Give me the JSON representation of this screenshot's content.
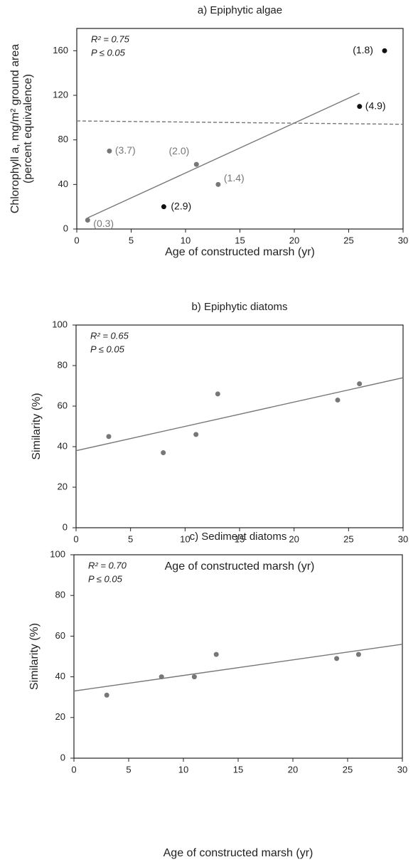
{
  "chart_data": [
    {
      "type": "scatter",
      "title": "a) Epiphytic algae",
      "xlabel": "Age of constructed marsh (yr)",
      "ylabel": "Chlorophyll a, mg/m² ground area",
      "ylabel2": "(percent equivalence)",
      "annotations": [
        "R² = 0.75",
        "P ≤ 0.05"
      ],
      "xlim": [
        0,
        30
      ],
      "ylim": [
        0,
        180
      ],
      "xticks": [
        0,
        5,
        10,
        15,
        20,
        25,
        30
      ],
      "yticks": [
        0,
        40,
        80,
        120,
        160
      ],
      "series": [
        {
          "x": [
            1,
            3,
            8,
            11,
            13,
            26,
            28.3
          ],
          "values": [
            8,
            70,
            20,
            58,
            40,
            110,
            160
          ],
          "colors": [
            "#777777",
            "#777777",
            "#111111",
            "#777777",
            "#777777",
            "#111111",
            "#111111"
          ],
          "labels": [
            "(0.3)",
            "(3.7)",
            "(2.9)",
            "(2.0)",
            "(1.4)",
            "(4.9)",
            "(1.8)"
          ]
        }
      ],
      "fit": {
        "x": [
          1,
          26
        ],
        "values": [
          10,
          122
        ],
        "color": "#777777"
      },
      "reference": {
        "x": [
          0,
          30
        ],
        "values": [
          97,
          94
        ],
        "color": "#777777"
      }
    },
    {
      "type": "scatter",
      "title": "b) Epiphytic diatoms",
      "xlabel": "Age of constructed marsh (yr)",
      "ylabel": "Similarity (%)",
      "annotations": [
        "R² = 0.65",
        "P ≤ 0.05"
      ],
      "xlim": [
        0,
        30
      ],
      "ylim": [
        0,
        100
      ],
      "xticks": [
        0,
        5,
        10,
        15,
        20,
        25,
        30
      ],
      "yticks": [
        0,
        20,
        40,
        60,
        80,
        100
      ],
      "series": [
        {
          "x": [
            3,
            8,
            11,
            13,
            24,
            26
          ],
          "values": [
            45,
            37,
            46,
            66,
            63,
            71
          ],
          "color": "#777777"
        }
      ],
      "fit": {
        "x": [
          0,
          30
        ],
        "values": [
          38,
          74
        ],
        "color": "#777777"
      }
    },
    {
      "type": "scatter",
      "title": "c) Sediment diatoms",
      "xlabel": "Age of constructed marsh (yr)",
      "ylabel": "Similarity (%)",
      "annotations": [
        "R² = 0.70",
        "P ≤ 0.05"
      ],
      "xlim": [
        0,
        30
      ],
      "ylim": [
        0,
        100
      ],
      "xticks": [
        0,
        5,
        10,
        15,
        20,
        25,
        30
      ],
      "yticks": [
        0,
        20,
        40,
        60,
        80,
        100
      ],
      "series": [
        {
          "x": [
            3,
            8,
            11,
            13,
            24,
            26
          ],
          "values": [
            31,
            40,
            40,
            51,
            49,
            51
          ],
          "color": "#777777"
        }
      ],
      "fit": {
        "x": [
          0,
          30
        ],
        "values": [
          33,
          56
        ],
        "color": "#777777"
      }
    }
  ]
}
